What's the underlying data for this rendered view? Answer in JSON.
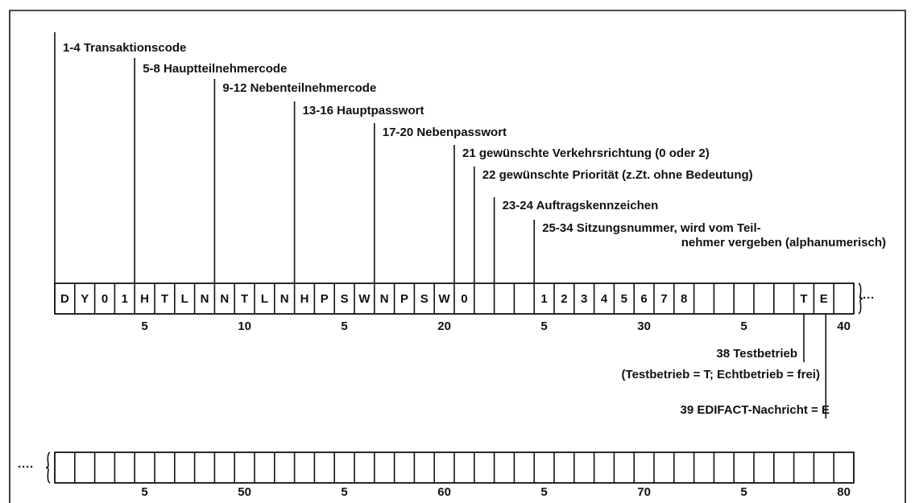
{
  "labels_top": [
    "1-4 Transaktionscode",
    "5-8 Hauptteilnehmercode",
    "9-12 Nebenteilnehmercode",
    "13-16 Hauptpasswort",
    "17-20 Nebenpasswort",
    "21 gewünschte Verkehrsrichtung (0 oder 2)",
    "22 gewünschte Priorität (z.Zt. ohne Bedeutung)",
    "23-24 Auftragskennzeichen",
    "25-34 Sitzungsnummer, wird vom Teil-",
    "nehmer vergeben (alphanumerisch)"
  ],
  "row1_cells": [
    "D",
    "Y",
    "0",
    "1",
    "H",
    "T",
    "L",
    "N",
    "N",
    "T",
    "L",
    "N",
    "H",
    "P",
    "S",
    "W",
    "N",
    "P",
    "S",
    "W",
    "0",
    null,
    null,
    null,
    "1",
    "2",
    "3",
    "4",
    "5",
    "6",
    "7",
    "8",
    null,
    null,
    null,
    null,
    null,
    "T",
    "E",
    null
  ],
  "row1_scale": [
    "5",
    "10",
    "5",
    "20",
    "5",
    "30",
    "5",
    "40"
  ],
  "row2_scale": [
    "5",
    "50",
    "5",
    "60",
    "5",
    "70",
    "5",
    "80"
  ],
  "labels_bottom": [
    "38 Testbetrieb",
    "(Testbetrieb = T;  Echtbetrieb = frei)",
    "39 EDIFACT-Nachricht = E"
  ],
  "continuation": "····"
}
